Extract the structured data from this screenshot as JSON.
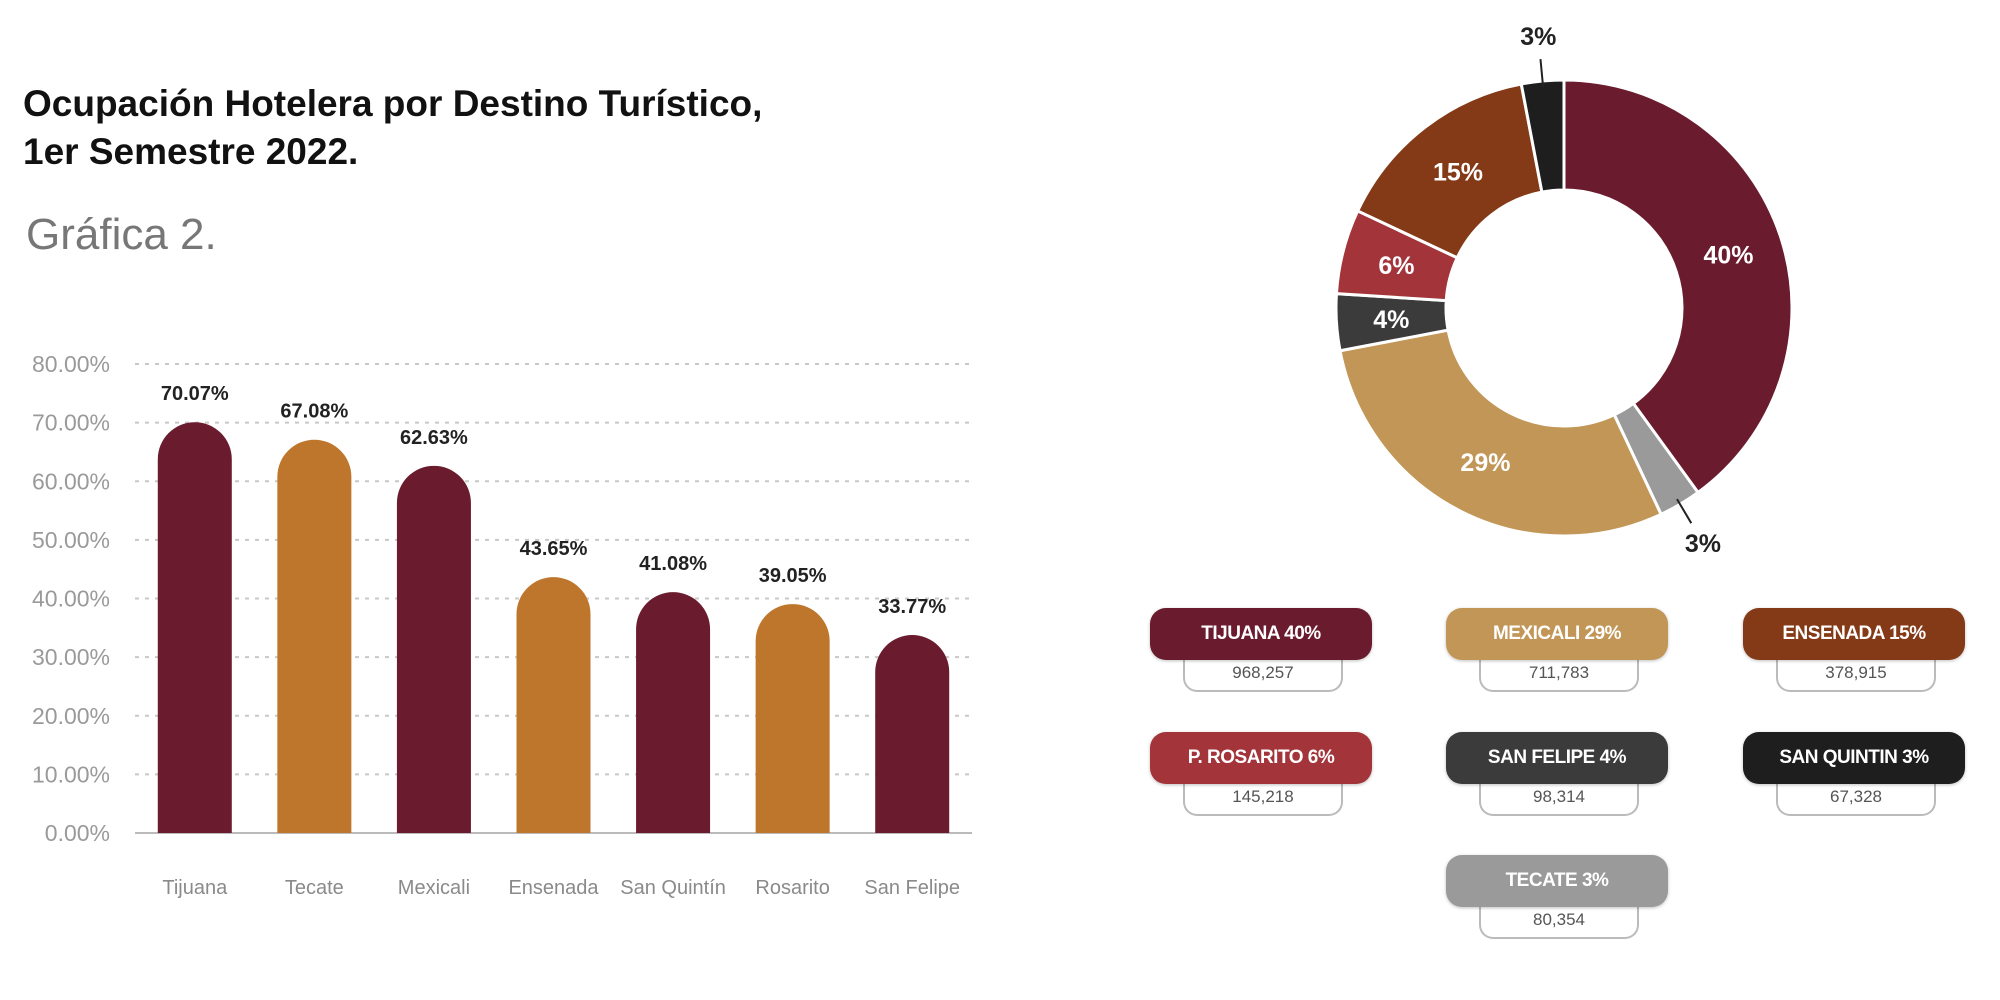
{
  "title_line1": "Ocupación Hotelera por Destino Turístico,",
  "title_line2": "1er Semestre 2022.",
  "subtitle": "Gráfica 2.",
  "chart_data": [
    {
      "type": "bar",
      "categories": [
        "Tijuana",
        "Tecate",
        "Mexicali",
        "Ensenada",
        "San Quintín",
        "Rosarito",
        "San Felipe"
      ],
      "values": [
        70.07,
        67.08,
        62.63,
        43.65,
        41.08,
        39.05,
        33.77
      ],
      "value_labels": [
        "70.07%",
        "67.08%",
        "62.63%",
        "43.65%",
        "41.08%",
        "39.05%",
        "33.77%"
      ],
      "colors": [
        "#6a1b2e",
        "#bd762b",
        "#6a1b2e",
        "#bd762b",
        "#6a1b2e",
        "#bd762b",
        "#6a1b2e"
      ],
      "ylim": [
        0,
        80
      ],
      "yticks": [
        "0.00%",
        "10.00%",
        "20.00%",
        "30.00%",
        "40.00%",
        "50.00%",
        "60.00%",
        "70.00%",
        "80.00%"
      ],
      "grid": true
    },
    {
      "type": "pie",
      "donut": true,
      "slices": [
        {
          "name": "TIJUANA",
          "percent": 40,
          "label": "40%",
          "value": "968,257",
          "color": "#6a1b2e"
        },
        {
          "name": "TECATE",
          "percent": 3,
          "label": "3%",
          "value": "80,354",
          "color": "#9a9a9a"
        },
        {
          "name": "MEXICALI",
          "percent": 29,
          "label": "29%",
          "value": "711,783",
          "color": "#c19656"
        },
        {
          "name": "SAN FELIPE",
          "percent": 4,
          "label": "4%",
          "value": "98,314",
          "color": "#3b3b3b"
        },
        {
          "name": "P. ROSARITO",
          "percent": 6,
          "label": "6%",
          "value": "145,218",
          "color": "#a2343a"
        },
        {
          "name": "ENSENADA",
          "percent": 15,
          "label": "15%",
          "value": "378,915",
          "color": "#843a16"
        },
        {
          "name": "SAN QUINTIN",
          "percent": 3,
          "label": "3%",
          "value": "67,328",
          "color": "#1e1e1e"
        }
      ]
    }
  ],
  "legend": [
    {
      "label": "TIJUANA 40%",
      "value": "968,257",
      "color": "#6a1b2e"
    },
    {
      "label": "MEXICALI 29%",
      "value": "711,783",
      "color": "#c19656"
    },
    {
      "label": "ENSENADA 15%",
      "value": "378,915",
      "color": "#843a16"
    },
    {
      "label": "P. ROSARITO 6%",
      "value": "145,218",
      "color": "#a2343a"
    },
    {
      "label": "SAN FELIPE 4%",
      "value": "98,314",
      "color": "#3b3b3b"
    },
    {
      "label": "SAN QUINTIN 3%",
      "value": "67,328",
      "color": "#1e1e1e"
    },
    {
      "label": "TECATE 3%",
      "value": "80,354",
      "color": "#9a9a9a"
    }
  ]
}
